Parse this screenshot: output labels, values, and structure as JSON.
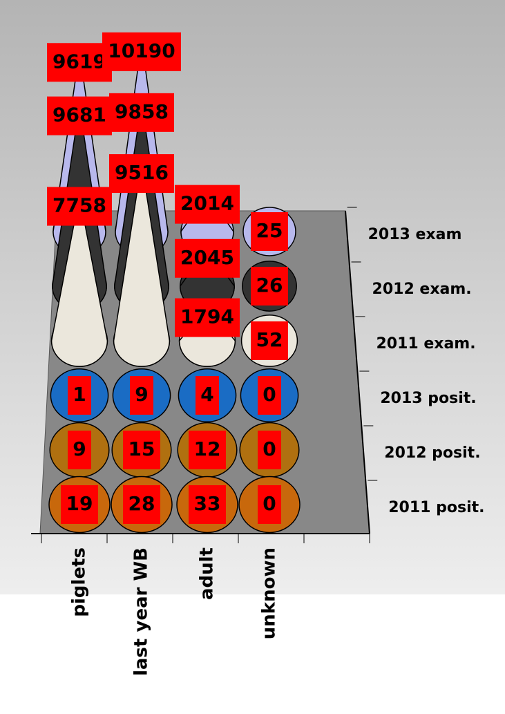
{
  "chart_data": {
    "type": "cone3d",
    "categories": [
      "piglets",
      "last year WB",
      "adult",
      "unknown"
    ],
    "series": [
      {
        "name": "2011 posit.",
        "color": "#c8680c",
        "values": [
          19,
          28,
          33,
          0
        ]
      },
      {
        "name": "2012 posit.",
        "color": "#b07010",
        "values": [
          9,
          15,
          12,
          0
        ]
      },
      {
        "name": "2013 posit.",
        "color": "#1a6cc4",
        "values": [
          1,
          9,
          4,
          0
        ]
      },
      {
        "name": "2011 exam.",
        "color": "#ebe7dc",
        "values": [
          7758,
          9516,
          1794,
          52
        ]
      },
      {
        "name": "2012 exam.",
        "color": "#333333",
        "values": [
          9681,
          9858,
          2045,
          26
        ]
      },
      {
        "name": "2013 exam",
        "color": "#b8b8ec",
        "values": [
          9619,
          10190,
          2014,
          25
        ]
      }
    ]
  }
}
